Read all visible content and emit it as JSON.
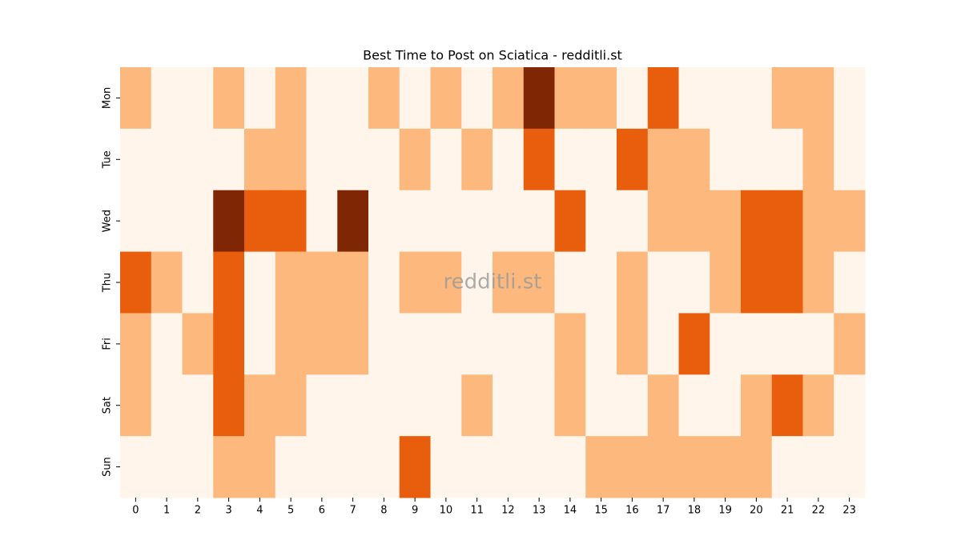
{
  "chart_data": {
    "type": "heatmap",
    "title": "Best Time to Post on Sciatica - redditli.st",
    "watermark": "redditli.st",
    "x": [
      0,
      1,
      2,
      3,
      4,
      5,
      6,
      7,
      8,
      9,
      10,
      11,
      12,
      13,
      14,
      15,
      16,
      17,
      18,
      19,
      20,
      21,
      22,
      23
    ],
    "y": [
      "Mon",
      "Tue",
      "Wed",
      "Thu",
      "Fri",
      "Sat",
      "Sun"
    ],
    "z": [
      [
        1,
        0,
        0,
        1,
        0,
        1,
        0,
        0,
        1,
        0,
        1,
        0,
        1,
        3,
        1,
        1,
        0,
        2,
        0,
        0,
        0,
        1,
        1,
        0
      ],
      [
        0,
        0,
        0,
        0,
        1,
        1,
        0,
        0,
        0,
        1,
        0,
        1,
        0,
        2,
        0,
        0,
        2,
        1,
        1,
        0,
        0,
        0,
        1,
        0
      ],
      [
        0,
        0,
        0,
        3,
        2,
        2,
        0,
        3,
        0,
        0,
        0,
        0,
        0,
        0,
        2,
        0,
        0,
        1,
        1,
        1,
        2,
        2,
        1,
        1
      ],
      [
        2,
        1,
        0,
        2,
        0,
        1,
        1,
        1,
        0,
        1,
        1,
        0,
        1,
        1,
        0,
        0,
        1,
        0,
        0,
        1,
        2,
        2,
        1,
        0
      ],
      [
        1,
        0,
        1,
        2,
        0,
        1,
        1,
        1,
        0,
        0,
        0,
        0,
        0,
        0,
        1,
        0,
        1,
        0,
        2,
        0,
        0,
        0,
        0,
        1
      ],
      [
        1,
        0,
        0,
        2,
        1,
        1,
        0,
        0,
        0,
        0,
        0,
        1,
        0,
        0,
        1,
        0,
        0,
        1,
        0,
        0,
        1,
        2,
        1,
        0
      ],
      [
        0,
        0,
        0,
        1,
        1,
        0,
        0,
        0,
        0,
        2,
        0,
        0,
        0,
        0,
        0,
        1,
        1,
        1,
        1,
        1,
        1,
        0,
        0,
        0
      ]
    ],
    "zlim": [
      0,
      3
    ],
    "colormap": [
      "#fff5eb",
      "#fdb97d",
      "#e95e0d",
      "#7f2704"
    ]
  }
}
